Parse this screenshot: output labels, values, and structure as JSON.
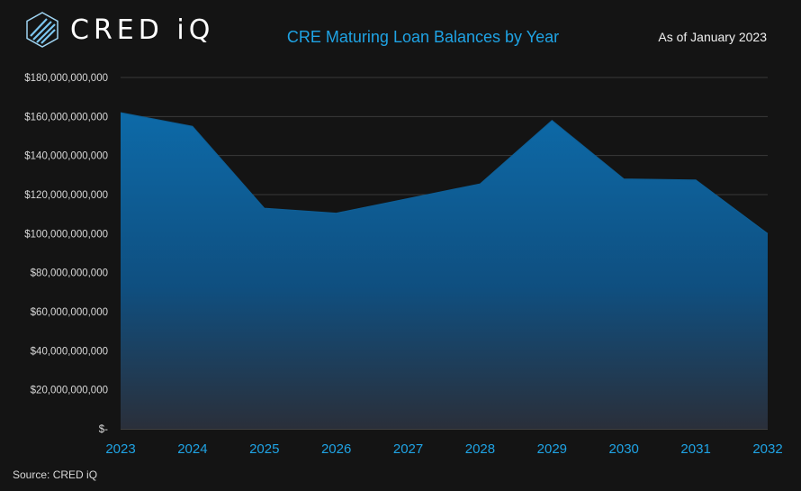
{
  "header": {
    "brand": "CRED iQ",
    "title": "CRE Maturing Loan Balances by Year",
    "as_of": "As of January 2023"
  },
  "footer": {
    "source": "Source:  CRED iQ"
  },
  "colors": {
    "title": "#1fa3e4",
    "axis_labels": "#1fa3e4",
    "area_top": "#0d6aa8",
    "area_bottom": "#2a2f3a",
    "background": "#141414"
  },
  "chart_data": {
    "type": "area",
    "title": "CRE Maturing Loan Balances by Year",
    "xlabel": "",
    "ylabel": "",
    "categories": [
      "2023",
      "2024",
      "2025",
      "2026",
      "2027",
      "2028",
      "2029",
      "2030",
      "2031",
      "2032"
    ],
    "series": [
      {
        "values": [
          162000000000,
          155000000000,
          113000000000,
          110500000000,
          118000000000,
          125500000000,
          158000000000,
          128000000000,
          127500000000,
          100000000000
        ]
      }
    ],
    "ylim": [
      0,
      180000000000
    ],
    "yticks": [
      0,
      20000000000,
      40000000000,
      60000000000,
      80000000000,
      100000000000,
      120000000000,
      140000000000,
      160000000000,
      180000000000
    ],
    "ytick_labels": [
      "$-",
      "$20,000,000,000",
      "$40,000,000,000",
      "$60,000,000,000",
      "$80,000,000,000",
      "$100,000,000,000",
      "$120,000,000,000",
      "$140,000,000,000",
      "$160,000,000,000",
      "$180,000,000,000"
    ],
    "grid": true,
    "legend": "none"
  }
}
